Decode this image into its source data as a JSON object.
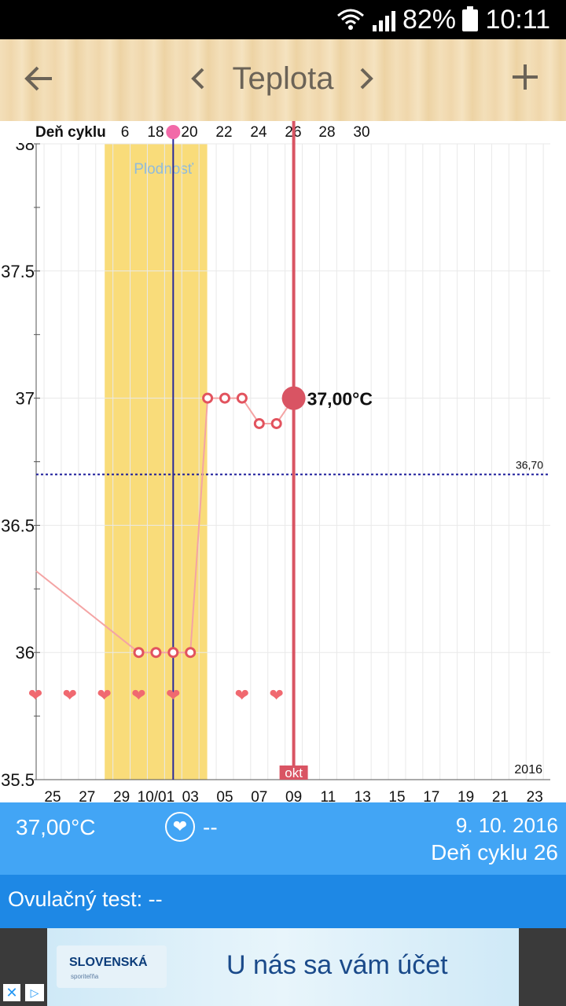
{
  "status_bar": {
    "battery": "82%",
    "time": "10:11"
  },
  "toolbar": {
    "title": "Teplota",
    "back_icon": "arrow-left-icon",
    "prev_icon": "chevron-left-icon",
    "next_icon": "chevron-right-icon",
    "add_icon": "plus-icon"
  },
  "chart_data": {
    "type": "line",
    "top_axis_label": "Deň cyklu",
    "top_axis_ticks": [
      "6",
      "18",
      "20",
      "22",
      "24",
      "26",
      "28",
      "30"
    ],
    "y_ticks": [
      "38",
      "37.5",
      "37",
      "36.5",
      "36",
      "35.5"
    ],
    "ylim": [
      35.5,
      38
    ],
    "x_tick_labels": [
      "25",
      "27",
      "29",
      "10/01",
      "03",
      "05",
      "07",
      "09",
      "11",
      "13",
      "15",
      "17",
      "19",
      "21",
      "23"
    ],
    "fertile_label": "Plodnosť",
    "coverline_label": "36,70",
    "coverline_value": 36.7,
    "selected_label": "37,00°C",
    "selected_value": 37.0,
    "month_label": "okt",
    "year_label": "2016",
    "series": [
      {
        "points": [
          {
            "date": "2016-09-23",
            "value": 36.32
          },
          {
            "date": "2016-09-30",
            "value": 36.0
          },
          {
            "date": "2016-10-01",
            "value": 36.0
          },
          {
            "date": "2016-10-02",
            "value": 36.0
          },
          {
            "date": "2016-10-03",
            "value": 36.0
          },
          {
            "date": "2016-10-04",
            "value": 37.0
          },
          {
            "date": "2016-10-05",
            "value": 37.0
          },
          {
            "date": "2016-10-06",
            "value": 37.0
          },
          {
            "date": "2016-10-07",
            "value": 36.9
          },
          {
            "date": "2016-10-08",
            "value": 36.9
          },
          {
            "date": "2016-10-09",
            "value": 37.0
          }
        ]
      }
    ],
    "intercourse_dates": [
      "2016-09-24",
      "2016-09-26",
      "2016-09-28",
      "2016-09-30",
      "2016-10-02",
      "2016-10-06",
      "2016-10-08"
    ],
    "fertile_window": [
      "2016-09-28",
      "2016-10-04"
    ],
    "ovulation_date": "2016-10-02",
    "selected_date": "2016-10-09",
    "colors": {
      "fertile": "#f9dc7a",
      "line": "#f4a4a4",
      "point": "#e2535e",
      "selected": "#d95463",
      "ovulation": "#2a2a9a",
      "coverline": "#1a1a9a",
      "heart": "#f06970"
    }
  },
  "info_bar": {
    "temperature": "37,00°C",
    "heart_icon": "heart-icon",
    "intercourse": "--",
    "date": "9. 10. 2016",
    "cycle_day": "Deň cyklu 26"
  },
  "test_bar": {
    "label": "Ovulačný test: --"
  },
  "ad": {
    "logo_text": "SLOVENSKÁ",
    "logo_sub": "sporiteľňa",
    "text": "U nás sa vám účet"
  }
}
